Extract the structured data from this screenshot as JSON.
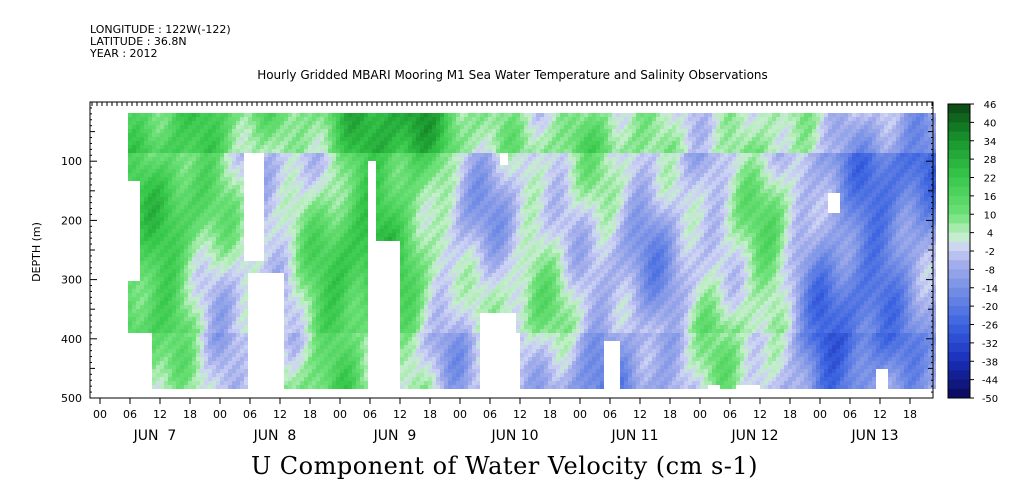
{
  "header": {
    "longitude": "LONGITUDE : 122W(-122)",
    "latitude": "LATITUDE : 36.8N",
    "year": "YEAR : 2012"
  },
  "title": "Hourly Gridded MBARI Mooring M1 Sea Water Temperature and Salinity Observations",
  "x_title": "U Component of Water Velocity (cm s-1)",
  "chart_data": {
    "type": "heatmap",
    "title": "Hourly Gridded MBARI Mooring M1 Sea Water Temperature and Salinity Observations",
    "xlabel": "U Component of Water Velocity (cm s-1)",
    "ylabel": "DEPTH (m)",
    "ylim": [
      0,
      500
    ],
    "y_inverted": true,
    "y_ticks": [
      100,
      200,
      300,
      400,
      500
    ],
    "x_hour_labels": [
      "00",
      "06",
      "12",
      "18",
      "00",
      "06",
      "12",
      "18",
      "00",
      "06",
      "12",
      "18",
      "00",
      "06",
      "12",
      "18",
      "00",
      "06",
      "12",
      "18",
      "00",
      "06",
      "12",
      "18",
      "00",
      "06",
      "12",
      "18"
    ],
    "x_day_labels": [
      "JUN  7",
      "JUN  8",
      "JUN  9",
      "JUN 10",
      "JUN 11",
      "JUN 12",
      "JUN 13"
    ],
    "colorbar": {
      "labels": [
        "46",
        "40",
        "34",
        "28",
        "22",
        "16",
        "10",
        "4",
        "-2",
        "-8",
        "-14",
        "-20",
        "-26",
        "-32",
        "-38",
        "-44",
        "-50"
      ],
      "min": -50,
      "max": 46
    },
    "series_profile_by_day": [
      {
        "day": "JUN  7",
        "u_mean": 12
      },
      {
        "day": "JUN  8",
        "u_mean": 4
      },
      {
        "day": "JUN  9",
        "u_mean": 14
      },
      {
        "day": "JUN 10",
        "u_mean": 0
      },
      {
        "day": "JUN 11",
        "u_mean": -4
      },
      {
        "day": "JUN 12",
        "u_mean": 2
      },
      {
        "day": "JUN 13",
        "u_mean": -14
      }
    ]
  }
}
